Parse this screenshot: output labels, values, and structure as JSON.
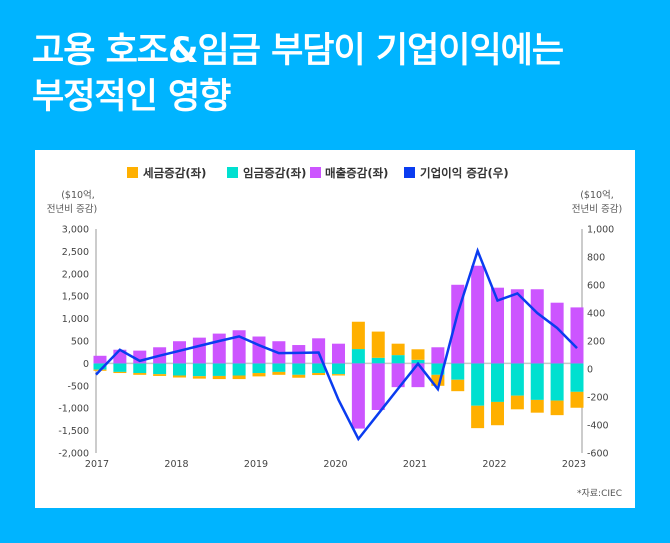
{
  "header": {
    "title_line1": "고용 호조&임금 부담이 기업이익에는",
    "title_line2": "부정적인 영향"
  },
  "colors": {
    "background": "#00b4ff",
    "tax": "#ffb000",
    "wage": "#00e0d0",
    "sales": "#cc55ff",
    "profit": "#0a3cf0"
  },
  "source": "*자료:CIEC",
  "chart_data": {
    "type": "bar+line",
    "legend_position": "top",
    "legend": [
      "세금증감(좌)",
      "임금증감(좌)",
      "매출증감(좌)",
      "기업이익 증감(우)"
    ],
    "left_unit": [
      "($10억,",
      "전년비 증감)"
    ],
    "right_unit": [
      "($10억,",
      "전년비 증감)"
    ],
    "x_tick_labels": [
      "2017",
      "2018",
      "2019",
      "2020",
      "2021",
      "2022",
      "2023"
    ],
    "left_ticks": [
      "3,000",
      "2,500",
      "2,000",
      "1,500",
      "1,000",
      "500",
      "0",
      "-500",
      "-1,000",
      "-1,500",
      "-2,000"
    ],
    "right_ticks": [
      "1,000",
      "800",
      "600",
      "400",
      "200",
      "0",
      "-200",
      "-400",
      "-600"
    ],
    "ylim_left": [
      -2000,
      3000
    ],
    "ylim_right": [
      -600,
      1000
    ],
    "x_range": [
      "2017Q1",
      "2023Q1"
    ],
    "series": [
      {
        "name": "세금증감(좌)",
        "type": "bar",
        "axis": "left",
        "values": [
          -25,
          -25,
          -40,
          -40,
          -45,
          -55,
          -70,
          -80,
          -75,
          -65,
          -65,
          -45,
          -30,
          610,
          585,
          255,
          235,
          -245,
          -255,
          -500,
          -520,
          -305,
          -285,
          -325,
          -355
        ]
      },
      {
        "name": "임금증감(좌)",
        "type": "bar",
        "axis": "left",
        "values": [
          -140,
          -190,
          -215,
          -240,
          -270,
          -285,
          -280,
          -270,
          -215,
          -190,
          -255,
          -215,
          -240,
          320,
          125,
          185,
          80,
          -255,
          -365,
          -945,
          -860,
          -720,
          -815,
          -830,
          -635
        ]
      },
      {
        "name": "매출증감(좌)",
        "type": "bar",
        "axis": "left",
        "values": [
          170,
          305,
          285,
          360,
          495,
          575,
          665,
          740,
          600,
          495,
          410,
          560,
          440,
          -1455,
          -1040,
          -530,
          -530,
          360,
          1755,
          2180,
          1690,
          1655,
          1655,
          1355,
          1250
        ]
      },
      {
        "name": "기업이익 증감(우)",
        "type": "line",
        "axis": "right",
        "values": [
          -40,
          137,
          58,
          95,
          130,
          165,
          200,
          233,
          170,
          113,
          115,
          118,
          -220,
          -500,
          -320,
          -140,
          38,
          -144,
          400,
          844,
          489,
          540,
          400,
          293,
          149
        ]
      }
    ]
  }
}
